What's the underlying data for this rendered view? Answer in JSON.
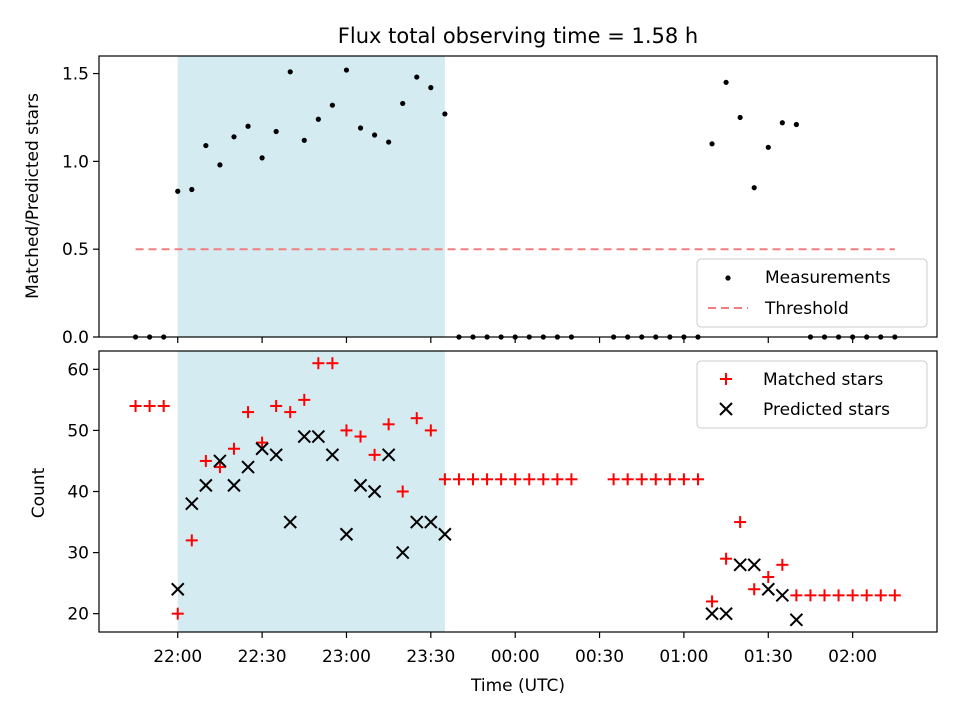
{
  "chart_data": [
    {
      "type": "scatter",
      "title": "Flux total observing time = 1.58 h",
      "xlabel": "",
      "ylabel": "Matched/Predicted stars",
      "xlim": [
        "21:32",
        "02:30"
      ],
      "ylim": [
        0,
        1.6
      ],
      "y_ticks": [
        0.0,
        0.5,
        1.0,
        1.5
      ],
      "y_tick_labels": [
        "0.0",
        "0.5",
        "1.0",
        "1.5"
      ],
      "shaded_span": {
        "x_start": "22:00",
        "x_end": "23:35",
        "color": "#d4ebf1"
      },
      "legend": {
        "position": "lower-right",
        "entries": [
          "Measurements",
          "Threshold"
        ]
      },
      "threshold": {
        "name": "Threshold",
        "y": 0.5,
        "x_start": "21:45",
        "x_end": "02:15",
        "color": "#f08080",
        "style": "dashed"
      },
      "series": [
        {
          "name": "Measurements",
          "color": "#000000",
          "marker": "dot",
          "x": [
            "21:45",
            "21:50",
            "21:55",
            "22:00",
            "22:05",
            "22:10",
            "22:15",
            "22:20",
            "22:25",
            "22:30",
            "22:35",
            "22:40",
            "22:45",
            "22:50",
            "22:55",
            "23:00",
            "23:05",
            "23:10",
            "23:15",
            "23:20",
            "23:25",
            "23:30",
            "23:35",
            "23:40",
            "23:45",
            "23:50",
            "23:55",
            "00:00",
            "00:05",
            "00:10",
            "00:15",
            "00:20",
            "00:35",
            "00:40",
            "00:45",
            "00:50",
            "00:55",
            "01:00",
            "01:05",
            "01:10",
            "01:15",
            "01:20",
            "01:25",
            "01:30",
            "01:35",
            "01:40",
            "01:45",
            "01:50",
            "01:55",
            "02:00",
            "02:05",
            "02:10",
            "02:15"
          ],
          "y": [
            0,
            0,
            0,
            0.83,
            0.84,
            1.09,
            0.98,
            1.14,
            1.2,
            1.02,
            1.17,
            1.51,
            1.12,
            1.24,
            1.32,
            1.52,
            1.19,
            1.15,
            1.11,
            1.33,
            1.48,
            1.42,
            1.27,
            0,
            0,
            0,
            0,
            0,
            0,
            0,
            0,
            0,
            0,
            0,
            0,
            0,
            0,
            0,
            0,
            1.1,
            1.45,
            1.25,
            0.85,
            1.08,
            1.22,
            1.21,
            0,
            0,
            0,
            0,
            0,
            0,
            0
          ]
        }
      ]
    },
    {
      "type": "scatter",
      "xlabel": "Time (UTC)",
      "ylabel": "Count",
      "xlim": [
        "21:32",
        "02:30"
      ],
      "ylim": [
        17,
        63
      ],
      "x_ticks": [
        "22:00",
        "22:30",
        "23:00",
        "23:30",
        "00:00",
        "00:30",
        "01:00",
        "01:30",
        "02:00"
      ],
      "y_ticks": [
        20,
        30,
        40,
        50,
        60
      ],
      "y_tick_labels": [
        "20",
        "30",
        "40",
        "50",
        "60"
      ],
      "shaded_span": {
        "x_start": "22:00",
        "x_end": "23:35",
        "color": "#d4ebf1"
      },
      "legend": {
        "position": "upper-right",
        "entries": [
          "Matched stars",
          "Predicted stars"
        ]
      },
      "series": [
        {
          "name": "Matched stars",
          "color": "#ff0000",
          "marker": "plus",
          "x": [
            "21:45",
            "21:50",
            "21:55",
            "22:00",
            "22:05",
            "22:10",
            "22:15",
            "22:20",
            "22:25",
            "22:30",
            "22:35",
            "22:40",
            "22:45",
            "22:50",
            "22:55",
            "23:00",
            "23:05",
            "23:10",
            "23:15",
            "23:20",
            "23:25",
            "23:30",
            "23:35",
            "23:40",
            "23:45",
            "23:50",
            "23:55",
            "00:00",
            "00:05",
            "00:10",
            "00:15",
            "00:20",
            "00:35",
            "00:40",
            "00:45",
            "00:50",
            "00:55",
            "01:00",
            "01:05",
            "01:10",
            "01:15",
            "01:20",
            "01:25",
            "01:30",
            "01:35",
            "01:40",
            "01:45",
            "01:50",
            "01:55",
            "02:00",
            "02:05",
            "02:10",
            "02:15"
          ],
          "y": [
            54,
            54,
            54,
            20,
            32,
            45,
            44,
            47,
            53,
            48,
            54,
            53,
            55,
            61,
            61,
            50,
            49,
            46,
            51,
            40,
            52,
            50,
            42,
            42,
            42,
            42,
            42,
            42,
            42,
            42,
            42,
            42,
            42,
            42,
            42,
            42,
            42,
            42,
            42,
            22,
            29,
            35,
            24,
            26,
            28,
            23,
            23,
            23,
            23,
            23,
            23,
            23,
            23
          ]
        },
        {
          "name": "Predicted stars",
          "color": "#000000",
          "marker": "x",
          "x": [
            "22:00",
            "22:05",
            "22:10",
            "22:15",
            "22:20",
            "22:25",
            "22:30",
            "22:35",
            "22:40",
            "22:45",
            "22:50",
            "22:55",
            "23:00",
            "23:05",
            "23:10",
            "23:15",
            "23:20",
            "23:25",
            "23:30",
            "23:35",
            "01:10",
            "01:15",
            "01:20",
            "01:25",
            "01:30",
            "01:35",
            "01:40"
          ],
          "y": [
            24,
            38,
            41,
            45,
            41,
            44,
            47,
            46,
            35,
            49,
            49,
            46,
            33,
            41,
            40,
            46,
            30,
            35,
            35,
            33,
            20,
            20,
            28,
            28,
            24,
            23,
            19
          ]
        }
      ]
    }
  ]
}
